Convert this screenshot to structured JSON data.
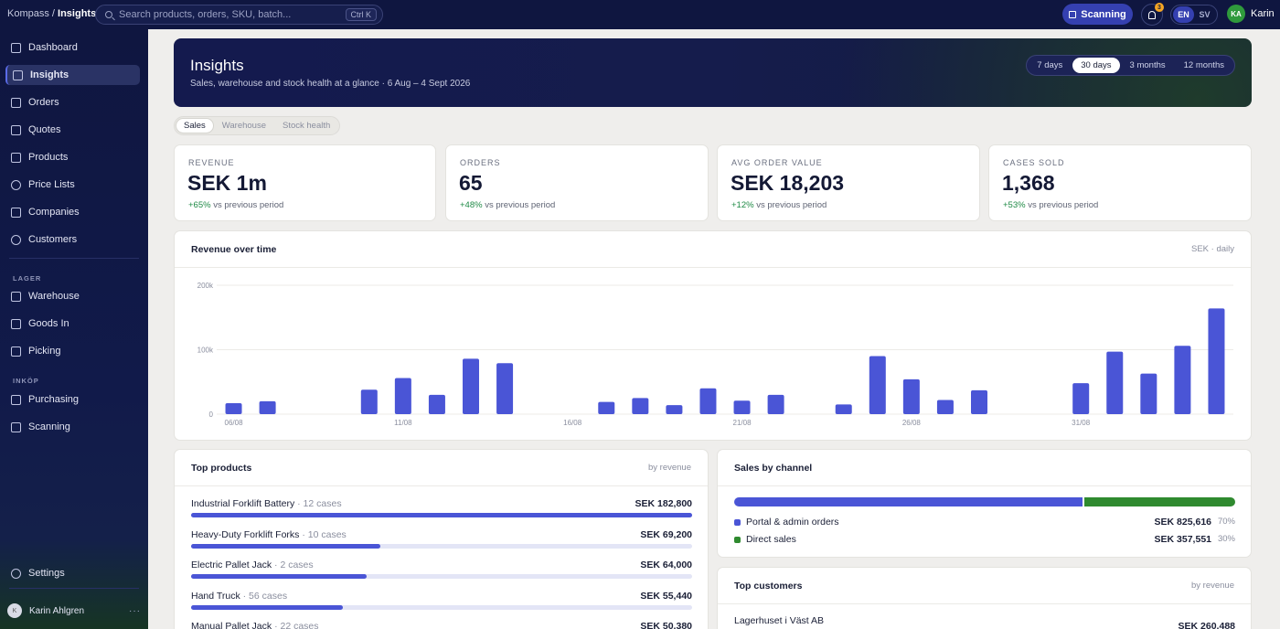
{
  "topbar": {
    "brand_prefix": "Kompass /",
    "brand_page": "Insights",
    "search_placeholder": "Search products, orders, SKU, batch...",
    "search_shortcut": "Ctrl K",
    "scanning_label": "Scanning",
    "notification_count": "3",
    "lang_en": "EN",
    "lang_sv": "SV",
    "user_initials": "KA",
    "user_name": "Karin"
  },
  "sidebar": {
    "items": [
      {
        "label": "Dashboard",
        "icon": "grid-icon"
      },
      {
        "label": "Insights",
        "icon": "bar-chart-icon"
      },
      {
        "label": "Orders",
        "icon": "cart-icon"
      },
      {
        "label": "Quotes",
        "icon": "document-icon"
      },
      {
        "label": "Products",
        "icon": "tag-icon"
      },
      {
        "label": "Price Lists",
        "icon": "dollar-icon"
      },
      {
        "label": "Companies",
        "icon": "building-icon"
      },
      {
        "label": "Customers",
        "icon": "users-icon"
      }
    ],
    "section_lager": "LAGER",
    "lager_items": [
      {
        "label": "Warehouse",
        "icon": "warehouse-icon"
      },
      {
        "label": "Goods In",
        "icon": "download-icon"
      },
      {
        "label": "Picking",
        "icon": "list-icon"
      }
    ],
    "section_inkop": "INKÖP",
    "inkop_items": [
      {
        "label": "Purchasing",
        "icon": "cart-icon"
      },
      {
        "label": "Scanning",
        "icon": "scan-icon"
      }
    ],
    "settings_label": "Settings",
    "user_name": "Karin Ahlgren",
    "user_initial": "K",
    "more": "···"
  },
  "hero": {
    "title": "Insights",
    "subtitle": "Sales, warehouse and stock health at a glance · 6 Aug – 4 Sept 2026",
    "ranges": [
      "7 days",
      "30 days",
      "3 months",
      "12 months"
    ],
    "active_range": "30 days"
  },
  "tabs": [
    "Sales",
    "Warehouse",
    "Stock health"
  ],
  "kpis": [
    {
      "label": "REVENUE",
      "value": "SEK 1m",
      "change": "+65%",
      "change_text": "vs previous period"
    },
    {
      "label": "ORDERS",
      "value": "65",
      "change": "+48%",
      "change_text": "vs previous period"
    },
    {
      "label": "AVG ORDER VALUE",
      "value": "SEK 18,203",
      "change": "+12%",
      "change_text": "vs previous period"
    },
    {
      "label": "CASES SOLD",
      "value": "1,368",
      "change": "+53%",
      "change_text": "vs previous period"
    }
  ],
  "revenue_chart": {
    "title": "Revenue over time",
    "note": "SEK · daily"
  },
  "chart_data": {
    "type": "bar",
    "title": "Revenue over time",
    "y_ticks": [
      "0",
      "100k",
      "200k"
    ],
    "ylim": [
      0,
      200000
    ],
    "x_tick_labels": [
      {
        "index": 0,
        "label": "06/08"
      },
      {
        "index": 5,
        "label": "11/08"
      },
      {
        "index": 10,
        "label": "16/08"
      },
      {
        "index": 15,
        "label": "21/08"
      },
      {
        "index": 20,
        "label": "26/08"
      },
      {
        "index": 25,
        "label": "31/08"
      }
    ],
    "categories": [
      "06/08",
      "07/08",
      "08/08",
      "09/08",
      "10/08",
      "11/08",
      "12/08",
      "13/08",
      "14/08",
      "15/08",
      "16/08",
      "17/08",
      "18/08",
      "19/08",
      "20/08",
      "21/08",
      "22/08",
      "23/08",
      "24/08",
      "25/08",
      "26/08",
      "27/08",
      "28/08",
      "29/08",
      "30/08",
      "31/08",
      "01/09",
      "02/09",
      "03/09",
      "04/09"
    ],
    "values": [
      17000,
      20000,
      0,
      0,
      38000,
      56000,
      30000,
      86000,
      79000,
      0,
      0,
      19000,
      25000,
      14000,
      40000,
      21000,
      30000,
      0,
      15000,
      90000,
      54000,
      22000,
      37000,
      0,
      0,
      48000,
      97000,
      63000,
      106000,
      164000
    ],
    "grid": true,
    "color": "#4a55d6"
  },
  "top_products": {
    "title": "Top products",
    "note": "by revenue",
    "items": [
      {
        "name": "Industrial Forklift Battery",
        "cases": "· 12 cases",
        "value": "SEK 182,800",
        "share": 1.0
      },
      {
        "name": "Heavy-Duty Forklift Forks",
        "cases": "· 10 cases",
        "value": "SEK 69,200",
        "share": 0.378
      },
      {
        "name": "Electric Pallet Jack",
        "cases": "· 2 cases",
        "value": "SEK 64,000",
        "share": 0.35
      },
      {
        "name": "Hand Truck",
        "cases": "· 56 cases",
        "value": "SEK 55,440",
        "share": 0.303
      },
      {
        "name": "Manual Pallet Jack",
        "cases": "· 22 cases",
        "value": "SEK 50,380",
        "share": 0.276
      }
    ]
  },
  "sales_by_channel": {
    "title": "Sales by channel",
    "channels": [
      {
        "name": "Portal & admin orders",
        "value": "SEK 825,616",
        "pct": "70%",
        "share": 0.698,
        "color": "#4a55d6"
      },
      {
        "name": "Direct sales",
        "value": "SEK 357,551",
        "pct": "30%",
        "share": 0.302,
        "color": "#2f8a2f"
      }
    ]
  },
  "top_customers": {
    "title": "Top customers",
    "note": "by revenue",
    "items": [
      {
        "name": "Lagerhuset i Väst AB",
        "value": "SEK 260,488"
      }
    ]
  }
}
